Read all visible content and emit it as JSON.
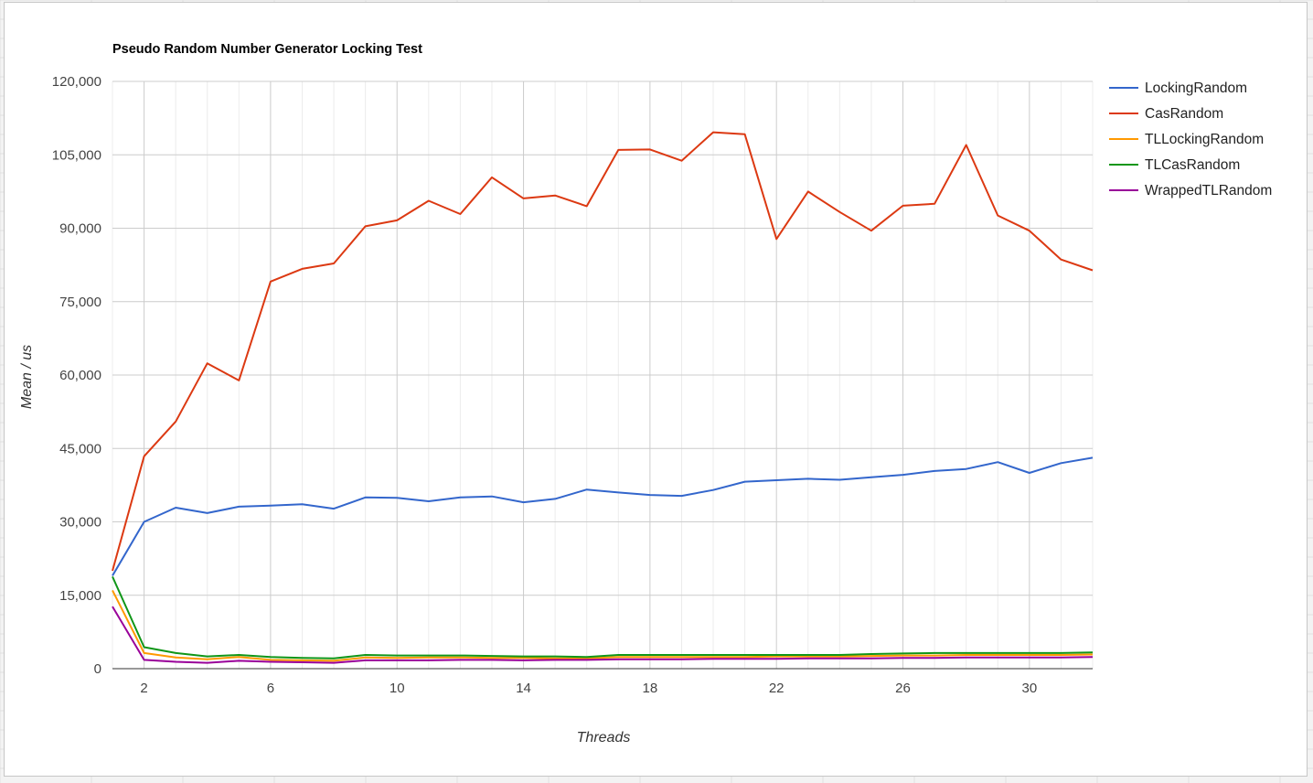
{
  "chart_data": {
    "type": "line",
    "title": "Pseudo Random Number Generator Locking Test",
    "xlabel": "Threads",
    "ylabel": "Mean / us",
    "xlim": [
      1,
      32
    ],
    "ylim": [
      0,
      120000
    ],
    "x_ticks": [
      2,
      6,
      10,
      14,
      18,
      22,
      26,
      30
    ],
    "y_ticks": [
      0,
      15000,
      30000,
      45000,
      60000,
      75000,
      90000,
      105000,
      120000
    ],
    "y_tick_labels": [
      "0",
      "15,000",
      "30,000",
      "45,000",
      "60,000",
      "75,000",
      "90,000",
      "105,000",
      "120,000"
    ],
    "grid": true,
    "legend_position": "right",
    "x": [
      1,
      2,
      3,
      4,
      5,
      6,
      7,
      8,
      9,
      10,
      11,
      12,
      13,
      14,
      15,
      16,
      17,
      18,
      19,
      20,
      21,
      22,
      23,
      24,
      25,
      26,
      27,
      28,
      29,
      30,
      31,
      32
    ],
    "series": [
      {
        "name": "LockingRandom",
        "color": "#3366cc",
        "values": [
          19000,
          30000,
          32900,
          31800,
          33100,
          33300,
          33600,
          32700,
          35000,
          34900,
          34200,
          35000,
          35200,
          34000,
          34700,
          36600,
          36000,
          35500,
          35300,
          36500,
          38200,
          38500,
          38800,
          38600,
          39100,
          39600,
          40400,
          40800,
          42200,
          40000,
          42000,
          43100
        ]
      },
      {
        "name": "CasRandom",
        "color": "#dc3912",
        "values": [
          20000,
          43400,
          50500,
          62400,
          58900,
          79100,
          81700,
          82800,
          90400,
          91600,
          95600,
          92900,
          100400,
          96100,
          96700,
          94500,
          106000,
          106100,
          103800,
          109600,
          109200,
          87800,
          97500,
          93300,
          89500,
          94600,
          95000,
          107000,
          92600,
          89500,
          83600,
          81400
        ]
      },
      {
        "name": "TLLockingRandom",
        "color": "#ff9900",
        "values": [
          16000,
          3200,
          2300,
          1900,
          2400,
          1800,
          1700,
          1600,
          2300,
          2200,
          2300,
          2300,
          2200,
          2200,
          2100,
          2100,
          2400,
          2400,
          2400,
          2400,
          2400,
          2500,
          2500,
          2500,
          2600,
          2700,
          2700,
          2800,
          2800,
          2800,
          2800,
          2900
        ]
      },
      {
        "name": "TLCasRandom",
        "color": "#109618",
        "values": [
          18800,
          4400,
          3200,
          2500,
          2800,
          2400,
          2200,
          2100,
          2800,
          2700,
          2700,
          2700,
          2600,
          2500,
          2500,
          2400,
          2800,
          2800,
          2800,
          2800,
          2800,
          2800,
          2800,
          2800,
          3000,
          3100,
          3200,
          3200,
          3200,
          3200,
          3200,
          3300
        ]
      },
      {
        "name": "WrappedTLRandom",
        "color": "#990099",
        "values": [
          12700,
          1800,
          1400,
          1200,
          1600,
          1400,
          1300,
          1200,
          1700,
          1700,
          1700,
          1800,
          1800,
          1700,
          1800,
          1800,
          1900,
          1900,
          1900,
          2000,
          2000,
          2000,
          2100,
          2100,
          2100,
          2200,
          2200,
          2300,
          2300,
          2300,
          2300,
          2400
        ]
      }
    ]
  }
}
